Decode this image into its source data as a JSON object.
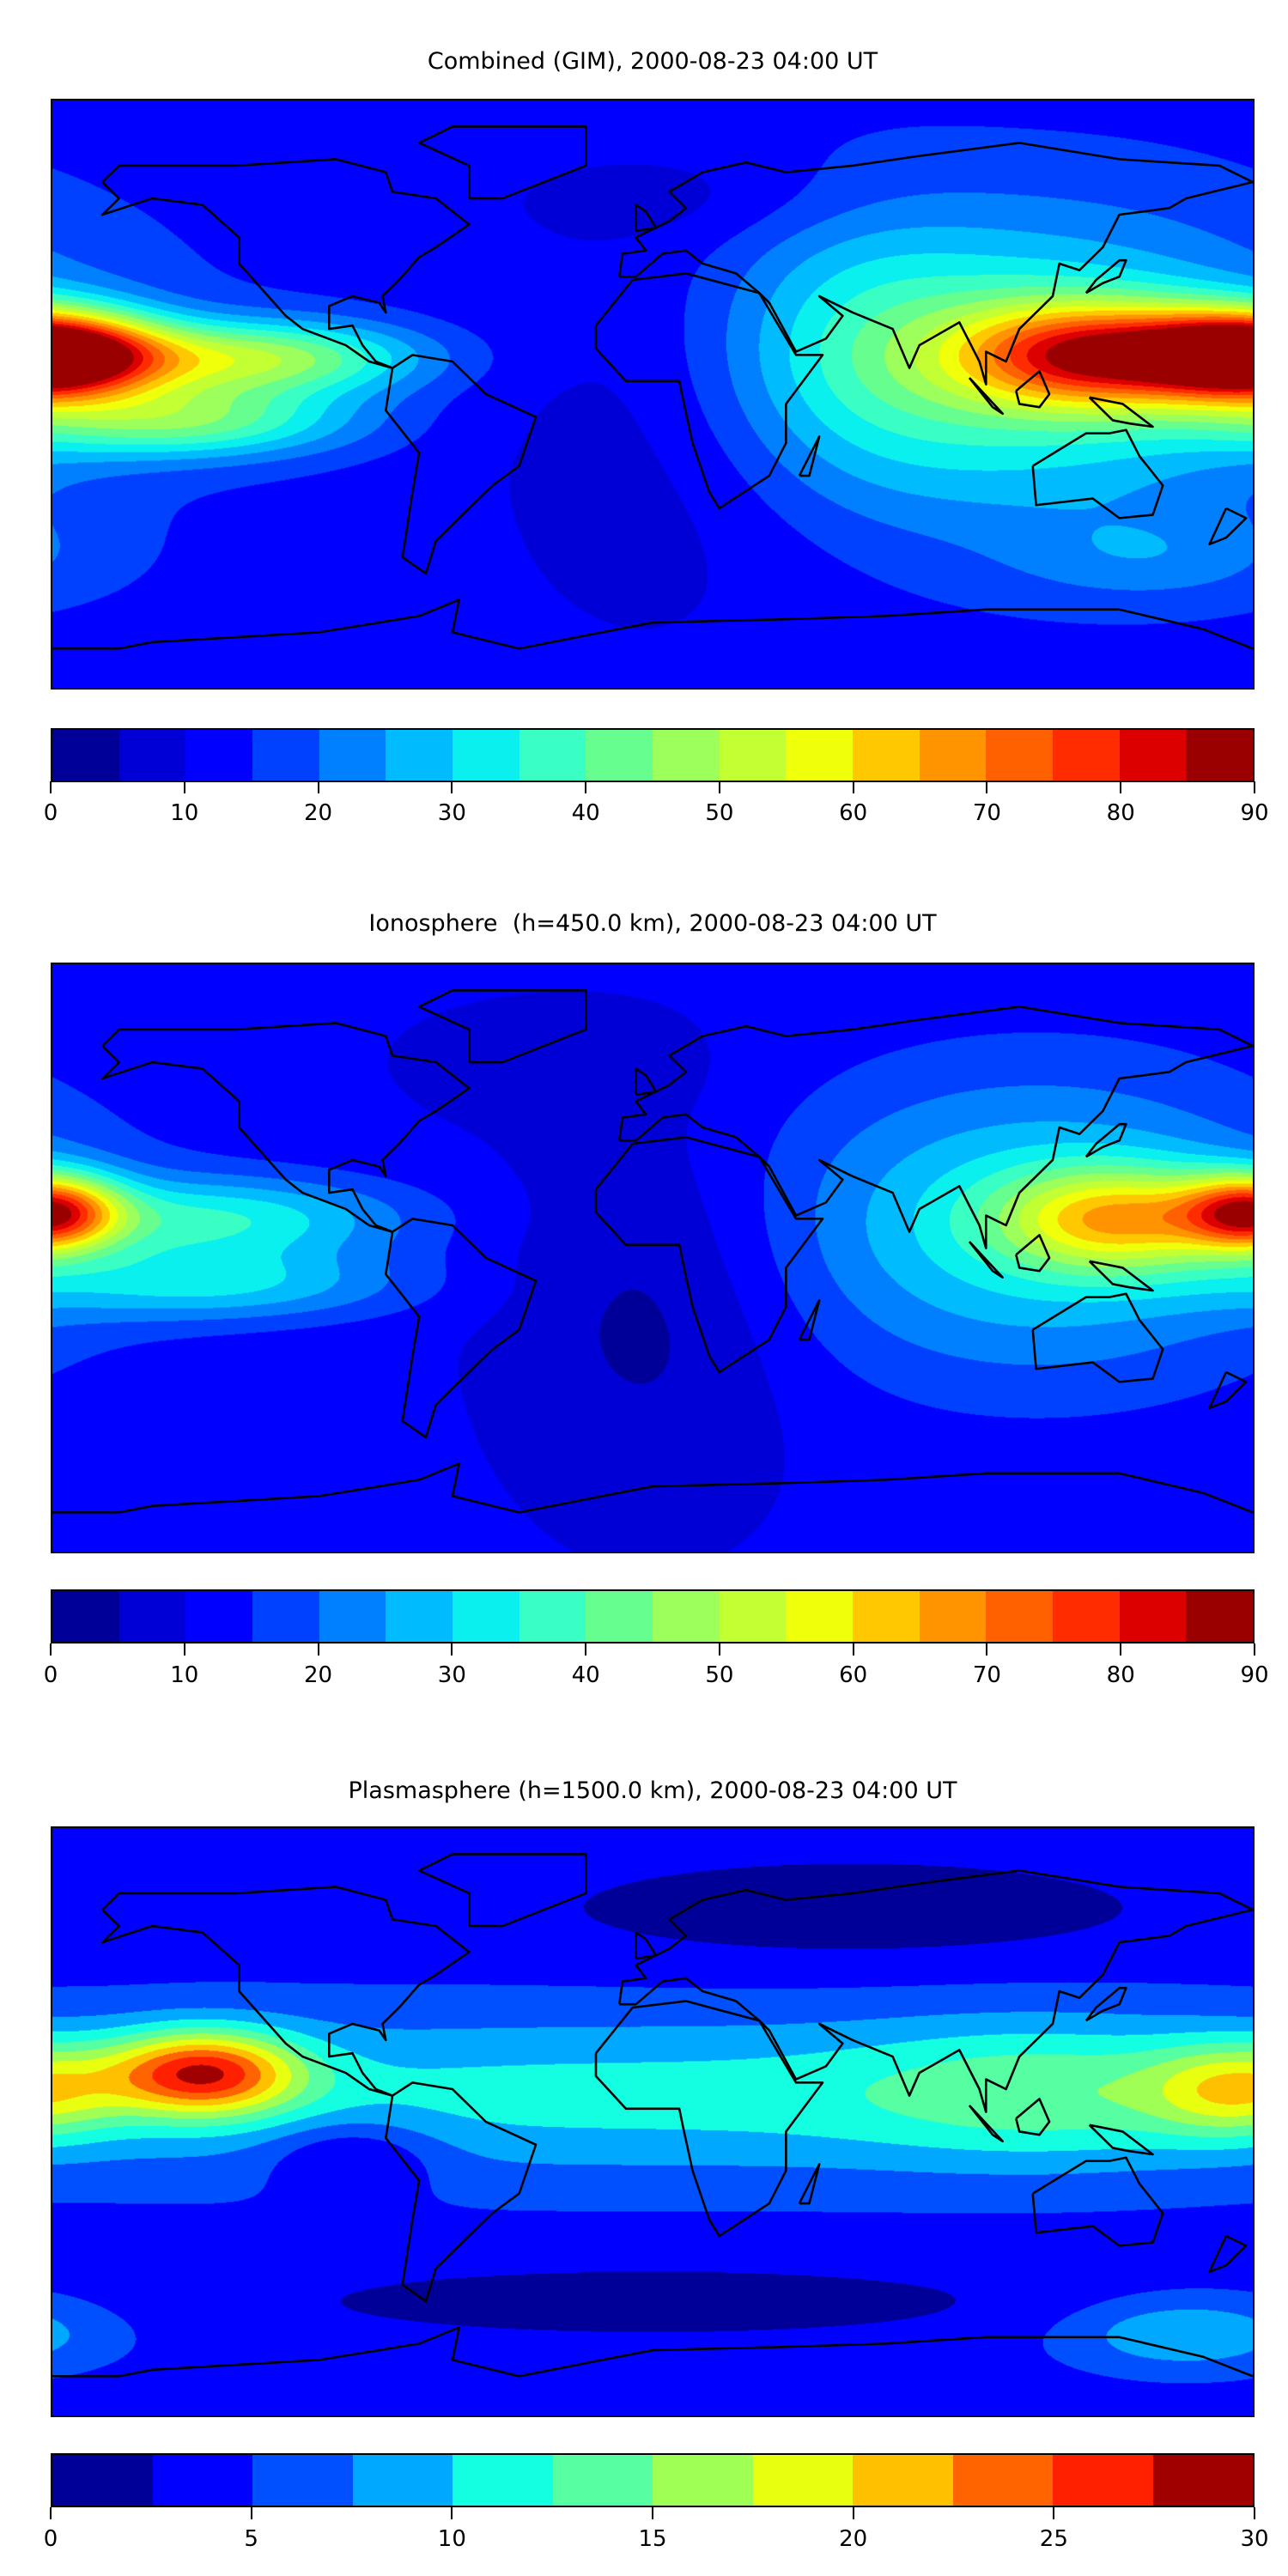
{
  "chart_data": [
    {
      "type": "heatmap",
      "title": "Combined (GIM), 2000-08-23 04:00 UT",
      "projection": "equirectangular world map with coastlines",
      "xlim": [
        -180,
        180
      ],
      "ylim": [
        -90,
        90
      ],
      "colorbar": {
        "min": 0,
        "max": 90,
        "ticks": [
          "0",
          "10",
          "20",
          "30",
          "40",
          "50",
          "60",
          "70",
          "80",
          "90"
        ],
        "colors": [
          "#000099",
          "#0000d6",
          "#0000ff",
          "#0040ff",
          "#0080ff",
          "#00bcff",
          "#0af0ee",
          "#39ffc4",
          "#66ff8f",
          "#9cff5b",
          "#c2ff33",
          "#f0ff0a",
          "#ffc800",
          "#ff9400",
          "#ff6000",
          "#ff2c00",
          "#dc0000",
          "#9b0000"
        ]
      },
      "background": 13,
      "features": [
        {
          "lon": -180,
          "lat": 12,
          "value": 68,
          "slon": 22,
          "slat": 9
        },
        {
          "lon": -120,
          "lat": 11,
          "value": 35,
          "slon": 35,
          "slat": 8
        },
        {
          "lon": -140,
          "lat": -8,
          "value": 28,
          "slon": 35,
          "slat": 8
        },
        {
          "lon": 180,
          "lat": 12,
          "value": 10,
          "slon": 20,
          "slat": 10
        },
        {
          "lon": 132,
          "lat": 12,
          "value": 50,
          "slon": 28,
          "slat": 11
        },
        {
          "lon": 115,
          "lat": 8,
          "value": 25,
          "slon": 55,
          "slat": 32
        },
        {
          "lon": 60,
          "lat": 15,
          "value": 12,
          "slon": 30,
          "slat": 30
        },
        {
          "lon": 0,
          "lat": -15,
          "value": -6,
          "slon": 40,
          "slat": 50
        },
        {
          "lon": 150,
          "lat": -50,
          "value": 8,
          "slon": 30,
          "slat": 10
        },
        {
          "lon": 10,
          "lat": 60,
          "value": -4,
          "slon": 40,
          "slat": 10
        }
      ]
    },
    {
      "type": "heatmap",
      "title": "Ionosphere  (h=450.0 km), 2000-08-23 04:00 UT",
      "projection": "equirectangular world map with coastlines",
      "xlim": [
        -180,
        180
      ],
      "ylim": [
        -90,
        90
      ],
      "colorbar": {
        "min": 0,
        "max": 90,
        "ticks": [
          "0",
          "10",
          "20",
          "30",
          "40",
          "50",
          "60",
          "70",
          "80",
          "90"
        ],
        "colors": [
          "#000099",
          "#0000d6",
          "#0000ff",
          "#0040ff",
          "#0080ff",
          "#00bcff",
          "#0af0ee",
          "#39ffc4",
          "#66ff8f",
          "#9cff5b",
          "#c2ff33",
          "#f0ff0a",
          "#ffc800",
          "#ff9400",
          "#ff6000",
          "#ff2c00",
          "#dc0000",
          "#9b0000"
        ]
      },
      "background": 11,
      "features": [
        {
          "lon": -180,
          "lat": 14,
          "value": 50,
          "slon": 14,
          "slat": 8
        },
        {
          "lon": -130,
          "lat": 12,
          "value": 22,
          "slon": 40,
          "slat": 9
        },
        {
          "lon": -130,
          "lat": -8,
          "value": 18,
          "slon": 40,
          "slat": 8
        },
        {
          "lon": 140,
          "lat": 12,
          "value": 35,
          "slon": 25,
          "slat": 11
        },
        {
          "lon": 115,
          "lat": 10,
          "value": 22,
          "slon": 55,
          "slat": 32
        },
        {
          "lon": 0,
          "lat": -15,
          "value": -8,
          "slon": 30,
          "slat": 40
        },
        {
          "lon": -30,
          "lat": 60,
          "value": -4,
          "slon": 30,
          "slat": 12
        }
      ]
    },
    {
      "type": "heatmap",
      "title": "Plasmasphere (h=1500.0 km), 2000-08-23 04:00 UT",
      "projection": "equirectangular world map with coastlines",
      "xlim": [
        -180,
        180
      ],
      "ylim": [
        -90,
        90
      ],
      "colorbar": {
        "min": 0,
        "max": 30,
        "ticks": [
          "0",
          "5",
          "10",
          "15",
          "20",
          "25",
          "30"
        ],
        "colors": [
          "#000099",
          "#0000ff",
          "#0050ff",
          "#00a8ff",
          "#14ffe2",
          "#55ffa2",
          "#a0ff55",
          "#e8ff10",
          "#ffc000",
          "#ff6400",
          "#ff2000",
          "#a00000"
        ]
      },
      "background": 4,
      "features": [
        {
          "lon": -135,
          "lat": 15,
          "value": 19,
          "slon": 20,
          "slat": 9
        },
        {
          "lon": 0,
          "lat": 8,
          "value": 7,
          "slon": 200,
          "slat": 18
        },
        {
          "lon": 175,
          "lat": 10,
          "value": 10,
          "slon": 18,
          "slat": 10
        },
        {
          "lon": 120,
          "lat": 10,
          "value": 5,
          "slon": 40,
          "slat": 15
        },
        {
          "lon": 60,
          "lat": 65,
          "value": -3,
          "slon": 70,
          "slat": 12
        },
        {
          "lon": 0,
          "lat": -55,
          "value": -3,
          "slon": 80,
          "slat": 8
        },
        {
          "lon": -90,
          "lat": -10,
          "value": -5,
          "slon": 18,
          "slat": 8
        },
        {
          "lon": 160,
          "lat": -65,
          "value": 6,
          "slon": 25,
          "slat": 8
        }
      ]
    }
  ]
}
